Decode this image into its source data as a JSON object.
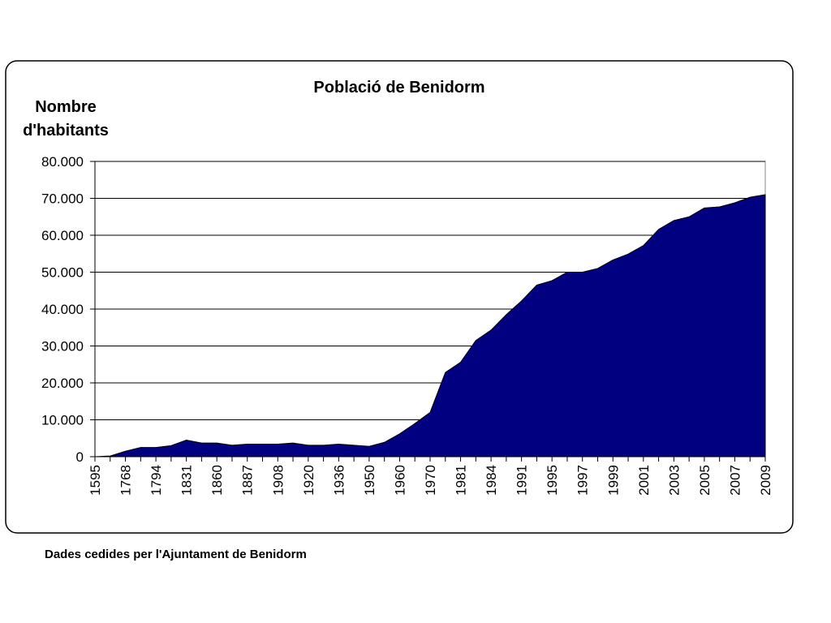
{
  "chart_data": {
    "type": "area",
    "title": "Població de Benidorm",
    "ylabel": [
      "Nombre",
      "d'habitants"
    ],
    "source": "Dades cedides per l'Ajuntament de Benidorm",
    "color": "#000080",
    "categories": [
      "1595",
      null,
      "1768",
      null,
      "1794",
      null,
      "1831",
      null,
      "1860",
      null,
      "1887",
      null,
      "1908",
      null,
      "1920",
      null,
      "1936",
      null,
      "1950",
      null,
      "1960",
      null,
      "1970",
      null,
      "1981",
      null,
      "1984",
      null,
      "1991",
      null,
      "1995",
      null,
      "1997",
      null,
      "1999",
      null,
      "2001",
      null,
      "2003",
      null,
      "2005",
      null,
      "2007",
      null,
      "2009"
    ],
    "values": [
      0,
      200,
      1500,
      2500,
      2500,
      3000,
      4500,
      3700,
      3700,
      3100,
      3400,
      3400,
      3400,
      3700,
      3100,
      3100,
      3400,
      3100,
      2800,
      3900,
      6200,
      9000,
      12000,
      22800,
      25600,
      31500,
      34300,
      38500,
      42200,
      46500,
      47700,
      50000,
      50000,
      51000,
      53300,
      54900,
      57200,
      61600,
      64000,
      65000,
      67400,
      67700,
      68800,
      70300,
      71000
    ],
    "ylim": [
      0,
      80000
    ],
    "yticks": [
      0,
      {
        "value": 10000,
        "label": "10.000"
      },
      {
        "value": 20000,
        "label": "20.000"
      },
      {
        "value": 30000,
        "label": "30.000"
      },
      {
        "value": 40000,
        "label": "40.000"
      },
      {
        "value": 50000,
        "label": "50.000"
      },
      {
        "value": 60000,
        "label": "60.000"
      },
      {
        "value": 70000,
        "label": "70.000"
      },
      {
        "value": 80000,
        "label": "80.000"
      }
    ],
    "grid": true
  }
}
